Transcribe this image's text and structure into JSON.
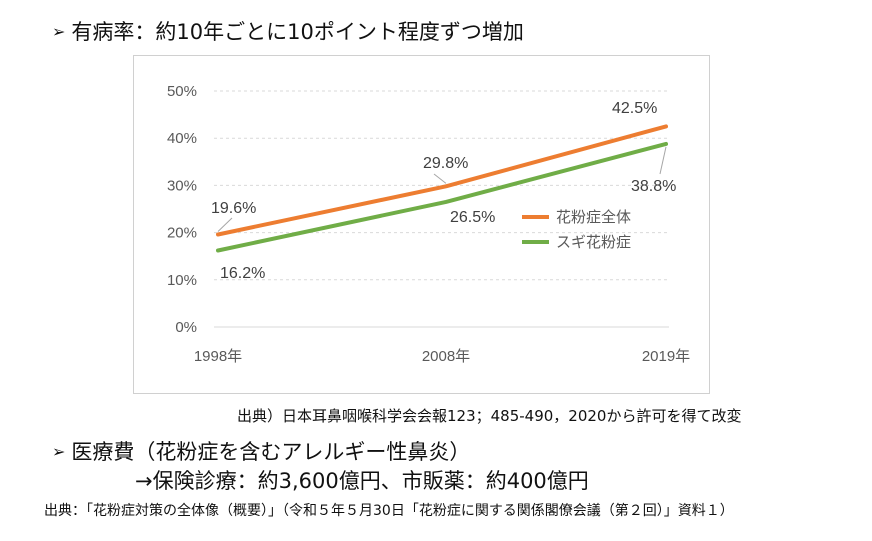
{
  "heading1": {
    "bullet": "➢",
    "text": "有病率：約10年ごとに10ポイント程度ずつ増加"
  },
  "chart_data": {
    "type": "line",
    "x": [
      "1998年",
      "2008年",
      "2019年"
    ],
    "y_ticks": [
      "0%",
      "10%",
      "20%",
      "30%",
      "40%",
      "50%"
    ],
    "ylim": [
      0,
      50
    ],
    "grid": true,
    "legend_position": "right",
    "series": [
      {
        "name": "花粉症全体",
        "values": [
          19.6,
          29.8,
          42.5
        ],
        "labels": [
          "19.6%",
          "29.8%",
          "42.5%"
        ],
        "color": "#ED7D31"
      },
      {
        "name": "スギ花粉症",
        "values": [
          16.2,
          26.5,
          38.8
        ],
        "labels": [
          "16.2%",
          "26.5%",
          "38.8%"
        ],
        "color": "#70AD47"
      }
    ]
  },
  "source_chart": "出典）日本耳鼻咽喉科学会会報123；485-490，2020から許可を得て改変",
  "heading2": {
    "bullet": "➢",
    "text": "医療費（花粉症を含むアレルギー性鼻炎）"
  },
  "sub2": "→保険診療：約3,600億円、市販薬：約400億円",
  "source_bottom": "出典：「花粉症対策の全体像（概要）」（令和５年５月30日「花粉症に関する関係閣僚会議（第２回）」資料１）"
}
